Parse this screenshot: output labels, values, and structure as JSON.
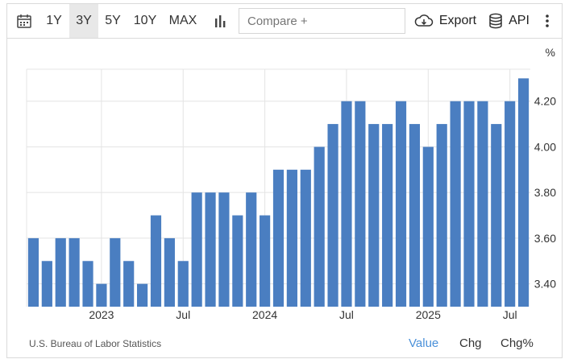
{
  "toolbar": {
    "ranges": [
      "1Y",
      "3Y",
      "5Y",
      "10Y",
      "MAX"
    ],
    "active_range": "3Y",
    "compare_placeholder": "Compare +",
    "export_label": "Export",
    "api_label": "API",
    "icons": [
      "calendar-icon",
      "bar-chart-icon",
      "cloud-download-icon",
      "database-icon",
      "more-vertical-icon"
    ]
  },
  "footer": {
    "source": "U.S. Bureau of Labor Statistics",
    "modes": [
      "Value",
      "Chg",
      "Chg%"
    ],
    "active_mode": "Value"
  },
  "colors": {
    "bar": "#4a7ec1",
    "grid": "#e4e4e4",
    "active_link": "#4a90d9"
  },
  "chart_data": {
    "type": "bar",
    "unit_label": "%",
    "ylim": [
      3.3,
      4.34
    ],
    "y_ticks": [
      3.4,
      3.6,
      3.8,
      4.0,
      4.2
    ],
    "y_tick_labels": [
      "3.40",
      "3.60",
      "3.80",
      "4.00",
      "4.20"
    ],
    "grid": true,
    "x_tick_labels": [
      {
        "label": "2023",
        "index": 5
      },
      {
        "label": "Jul",
        "index": 11
      },
      {
        "label": "2024",
        "index": 17
      },
      {
        "label": "Jul",
        "index": 23
      },
      {
        "label": "2025",
        "index": 29
      },
      {
        "label": "Jul",
        "index": 35
      }
    ],
    "values": [
      3.6,
      3.5,
      3.6,
      3.6,
      3.5,
      3.4,
      3.6,
      3.5,
      3.4,
      3.7,
      3.6,
      3.5,
      3.8,
      3.8,
      3.8,
      3.7,
      3.8,
      3.7,
      3.9,
      3.9,
      3.9,
      4.0,
      4.1,
      4.2,
      4.2,
      4.1,
      4.1,
      4.2,
      4.1,
      4.0,
      4.1,
      4.2,
      4.2,
      4.2,
      4.1,
      4.2,
      4.3
    ]
  }
}
